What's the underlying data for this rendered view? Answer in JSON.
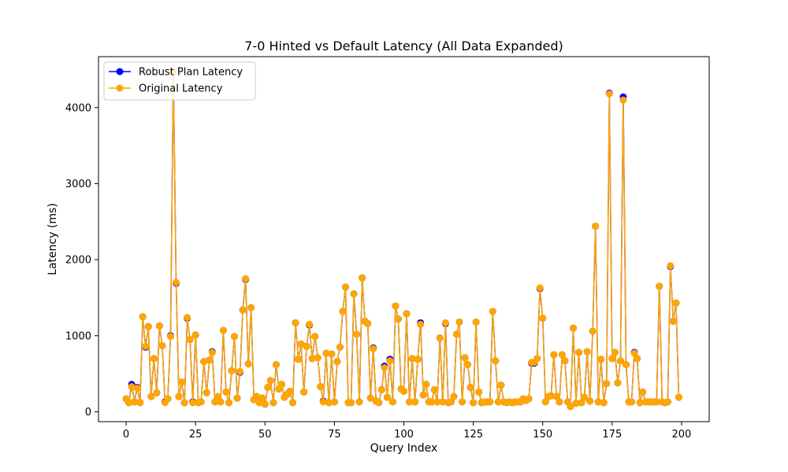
{
  "chart_data": {
    "type": "line",
    "title": "7-0 Hinted vs Default Latency (All Data Expanded)",
    "xlabel": "Query Index",
    "ylabel": "Latency (ms)",
    "xlim": [
      -9.95,
      209.95
    ],
    "ylim": [
      -130,
      4670
    ],
    "xticks": [
      0,
      25,
      50,
      75,
      100,
      125,
      150,
      175,
      200
    ],
    "yticks": [
      0,
      1000,
      2000,
      3000,
      4000
    ],
    "grid": false,
    "legend_position": "top-left",
    "series": [
      {
        "name": "Robust Plan Latency",
        "color": "#0000ff",
        "values": [
          170,
          120,
          360,
          130,
          320,
          120,
          1250,
          850,
          1120,
          200,
          700,
          250,
          1130,
          870,
          130,
          170,
          1000,
          4470,
          1690,
          200,
          390,
          120,
          1230,
          950,
          130,
          1010,
          120,
          130,
          660,
          250,
          680,
          790,
          130,
          200,
          130,
          1070,
          260,
          120,
          540,
          990,
          180,
          520,
          1340,
          1740,
          630,
          1370,
          160,
          200,
          120,
          180,
          100,
          320,
          410,
          120,
          620,
          300,
          360,
          190,
          230,
          270,
          120,
          1170,
          690,
          890,
          260,
          860,
          1140,
          700,
          990,
          710,
          330,
          140,
          770,
          120,
          760,
          130,
          660,
          850,
          1320,
          1640,
          120,
          120,
          1550,
          1020,
          130,
          1760,
          1190,
          1160,
          180,
          840,
          140,
          120,
          290,
          600,
          190,
          690,
          130,
          1390,
          1220,
          300,
          270,
          1290,
          130,
          700,
          130,
          690,
          1170,
          220,
          360,
          130,
          130,
          290,
          130,
          970,
          130,
          1160,
          120,
          130,
          200,
          1020,
          1180,
          130,
          710,
          620,
          320,
          120,
          1180,
          260,
          120,
          130,
          130,
          130,
          1320,
          670,
          130,
          350,
          130,
          120,
          130,
          120,
          130,
          130,
          130,
          170,
          150,
          170,
          640,
          640,
          700,
          1620,
          1230,
          130,
          200,
          210,
          750,
          200,
          130,
          750,
          670,
          130,
          70,
          1100,
          110,
          780,
          120,
          190,
          790,
          140,
          1060,
          2440,
          130,
          690,
          120,
          370,
          4190,
          700,
          780,
          380,
          670,
          4140,
          620,
          130,
          130,
          780,
          700,
          120,
          260,
          130,
          130,
          130,
          130,
          130,
          1650,
          130,
          120,
          130,
          1910,
          1190,
          1430,
          190
        ],
        "marker": "circle"
      },
      {
        "name": "Original Latency",
        "color": "#ffa500",
        "values": [
          170,
          120,
          330,
          130,
          310,
          120,
          1250,
          860,
          1120,
          200,
          700,
          250,
          1130,
          870,
          120,
          170,
          990,
          4470,
          1700,
          200,
          390,
          120,
          1240,
          950,
          120,
          1010,
          120,
          130,
          660,
          250,
          680,
          780,
          130,
          200,
          130,
          1070,
          260,
          120,
          540,
          990,
          180,
          530,
          1340,
          1750,
          630,
          1370,
          160,
          200,
          120,
          180,
          100,
          320,
          410,
          120,
          620,
          300,
          360,
          190,
          230,
          270,
          120,
          1170,
          690,
          890,
          260,
          860,
          1150,
          700,
          990,
          710,
          330,
          130,
          770,
          120,
          760,
          130,
          660,
          850,
          1320,
          1640,
          120,
          120,
          1550,
          1020,
          130,
          1760,
          1190,
          1160,
          180,
          830,
          140,
          120,
          290,
          580,
          190,
          670,
          130,
          1390,
          1220,
          300,
          270,
          1290,
          130,
          700,
          130,
          690,
          1150,
          220,
          360,
          130,
          130,
          290,
          130,
          970,
          130,
          1170,
          120,
          130,
          200,
          1020,
          1180,
          130,
          710,
          620,
          320,
          120,
          1180,
          260,
          120,
          130,
          130,
          130,
          1320,
          670,
          130,
          350,
          130,
          120,
          130,
          120,
          130,
          130,
          130,
          170,
          150,
          170,
          650,
          650,
          700,
          1630,
          1230,
          130,
          200,
          210,
          750,
          200,
          130,
          750,
          670,
          130,
          70,
          1100,
          110,
          780,
          120,
          190,
          790,
          140,
          1060,
          2440,
          130,
          690,
          120,
          370,
          4180,
          700,
          780,
          380,
          670,
          4100,
          620,
          130,
          130,
          770,
          700,
          120,
          260,
          130,
          130,
          130,
          130,
          130,
          1650,
          130,
          120,
          130,
          1920,
          1190,
          1430,
          190
        ],
        "marker": "circle"
      }
    ]
  }
}
